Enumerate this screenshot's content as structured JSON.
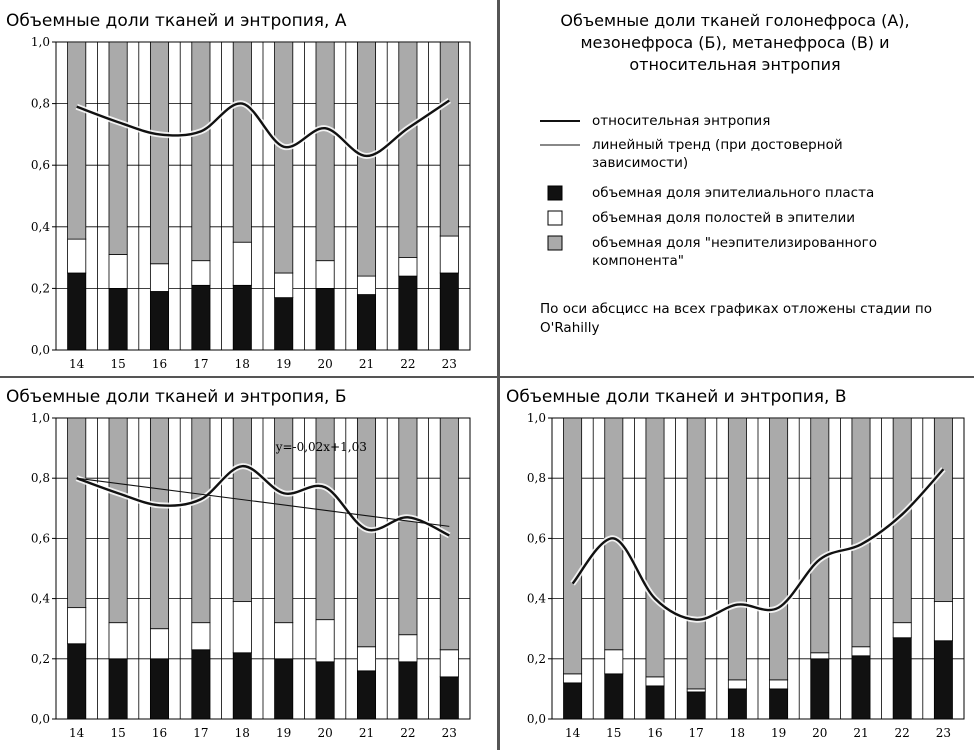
{
  "legend": {
    "title_lines": [
      "Объемные доли тканей голонефроса (А),",
      "мезонефроса (Б), метанефроса (В) и",
      "относительная энтропия"
    ],
    "items": [
      {
        "kind": "entropy-line",
        "label": "относительная энтропия"
      },
      {
        "kind": "trend-line",
        "label": "линейный тренд (при достоверной зависимости)"
      },
      {
        "kind": "black-box",
        "label": "объемная доля эпителиального пласта"
      },
      {
        "kind": "white-box",
        "label": "объемная доля полостей в эпителии"
      },
      {
        "kind": "gray-box",
        "label": "объемная доля \"неэпителизированного компонента\""
      }
    ],
    "note": "По оси абсцисс на всех графиках отложены стадии по O'Rahilly"
  },
  "colors": {
    "epithelium": "#111111",
    "cavities": "#ffffff",
    "non_epithelial": "#aaaaaa",
    "entropy": "#111111",
    "trend": "#111111"
  },
  "chart_data": [
    {
      "id": "A",
      "type": "bar",
      "stacked": true,
      "title": "Объемные доли тканей и энтропия, А",
      "categories": [
        "14",
        "15",
        "16",
        "17",
        "18",
        "19",
        "20",
        "21",
        "22",
        "23"
      ],
      "ylim": [
        0,
        1.0
      ],
      "yticks": [
        "0,0",
        "0,2",
        "0,4",
        "0,6",
        "0,8",
        "1,0"
      ],
      "grid": true,
      "series": [
        {
          "name": "объемная доля эпителиального пласта",
          "values": [
            0.25,
            0.2,
            0.19,
            0.21,
            0.21,
            0.17,
            0.2,
            0.18,
            0.24,
            0.25
          ]
        },
        {
          "name": "объемная доля полостей в эпителии",
          "values": [
            0.11,
            0.11,
            0.09,
            0.08,
            0.14,
            0.08,
            0.09,
            0.06,
            0.06,
            0.12
          ]
        },
        {
          "name": "объемная доля \"неэпителизированного компонента\"",
          "values": [
            0.64,
            0.69,
            0.72,
            0.71,
            0.65,
            0.75,
            0.71,
            0.76,
            0.7,
            0.63
          ]
        }
      ],
      "entropy": [
        0.79,
        0.74,
        0.7,
        0.71,
        0.8,
        0.66,
        0.72,
        0.63,
        0.72,
        0.81
      ],
      "trend": null,
      "annotation": ""
    },
    {
      "id": "B",
      "type": "bar",
      "stacked": true,
      "title": "Объемные доли тканей и энтропия, Б",
      "categories": [
        "14",
        "15",
        "16",
        "17",
        "18",
        "19",
        "20",
        "21",
        "22",
        "23"
      ],
      "ylim": [
        0,
        1.0
      ],
      "yticks": [
        "0,0",
        "0,2",
        "0,4",
        "0,6",
        "0,8",
        "1,0"
      ],
      "grid": true,
      "series": [
        {
          "name": "объемная доля эпителиального пласта",
          "values": [
            0.25,
            0.2,
            0.2,
            0.23,
            0.22,
            0.2,
            0.19,
            0.16,
            0.19,
            0.14
          ]
        },
        {
          "name": "объемная доля полостей в эпителии",
          "values": [
            0.12,
            0.12,
            0.1,
            0.09,
            0.17,
            0.12,
            0.14,
            0.08,
            0.09,
            0.09
          ]
        },
        {
          "name": "объемная доля \"неэпителизированного компонента\"",
          "values": [
            0.63,
            0.68,
            0.7,
            0.68,
            0.61,
            0.68,
            0.67,
            0.76,
            0.72,
            0.77
          ]
        }
      ],
      "entropy": [
        0.8,
        0.75,
        0.71,
        0.73,
        0.84,
        0.75,
        0.77,
        0.63,
        0.67,
        0.61
      ],
      "trend": [
        0.8,
        0.64
      ],
      "annotation": "y=-0,02x+1,03"
    },
    {
      "id": "C",
      "type": "bar",
      "stacked": true,
      "title": "Объемные доли тканей и энтропия, В",
      "categories": [
        "14",
        "15",
        "16",
        "17",
        "18",
        "19",
        "20",
        "21",
        "22",
        "23"
      ],
      "ylim": [
        0,
        1.0
      ],
      "yticks": [
        "0,0",
        "0,2",
        "0,4",
        "0,6",
        "0,8",
        "1,0"
      ],
      "grid": true,
      "series": [
        {
          "name": "объемная доля эпителиального пласта",
          "values": [
            0.12,
            0.15,
            0.11,
            0.09,
            0.1,
            0.1,
            0.2,
            0.21,
            0.27,
            0.26
          ]
        },
        {
          "name": "объемная доля полостей в эпителии",
          "values": [
            0.03,
            0.08,
            0.03,
            0.01,
            0.03,
            0.03,
            0.02,
            0.03,
            0.05,
            0.13
          ]
        },
        {
          "name": "объемная доля \"неэпителизированного компонента\"",
          "values": [
            0.85,
            0.77,
            0.86,
            0.9,
            0.87,
            0.87,
            0.78,
            0.76,
            0.68,
            0.61
          ]
        }
      ],
      "entropy": [
        0.45,
        0.6,
        0.4,
        0.33,
        0.38,
        0.37,
        0.53,
        0.58,
        0.68,
        0.83
      ],
      "trend": null,
      "annotation": ""
    }
  ]
}
